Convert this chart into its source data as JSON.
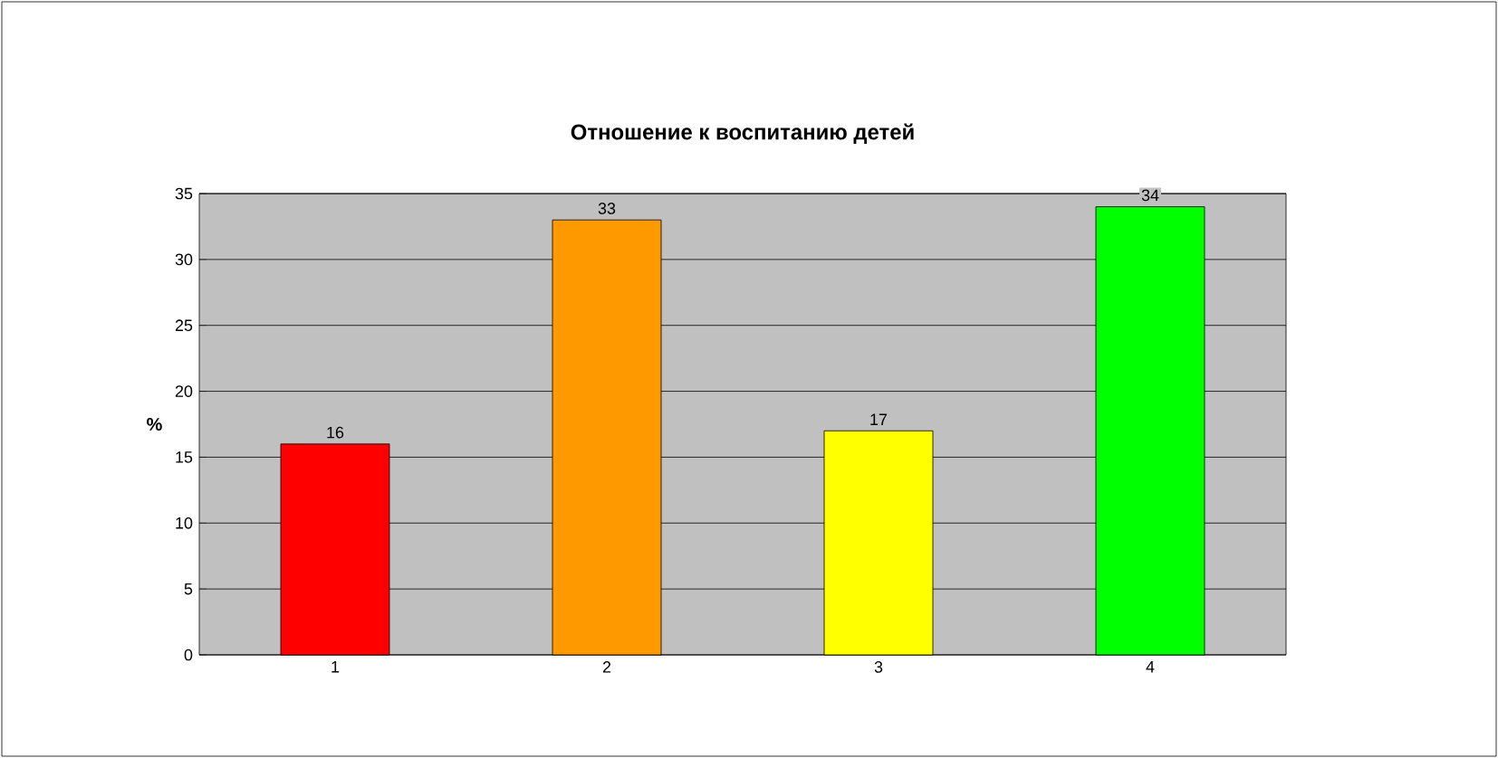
{
  "chart_data": {
    "type": "bar",
    "title": "Отношение к воспитанию детей",
    "ylabel": "%",
    "categories": [
      "1",
      "2",
      "3",
      "4"
    ],
    "values": [
      16,
      33,
      17,
      34
    ],
    "colors": [
      "#ff0000",
      "#ff9900",
      "#ffff00",
      "#00ff00"
    ],
    "ylim": [
      0,
      35
    ],
    "yticks": [
      0,
      5,
      10,
      15,
      20,
      25,
      30,
      35
    ],
    "grid": "y",
    "data_labels": true
  }
}
